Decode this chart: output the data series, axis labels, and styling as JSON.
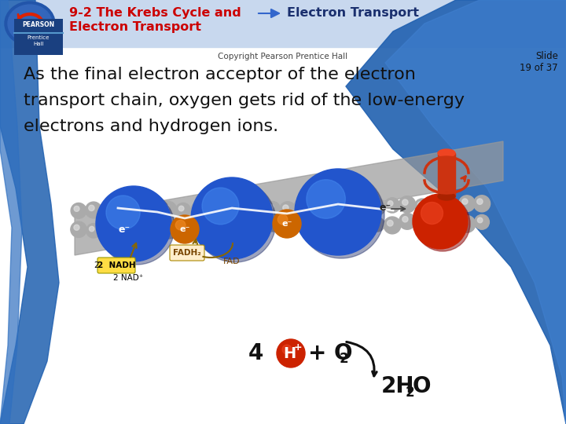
{
  "title_red": "9-2 The Krebs Cycle and",
  "title_highlight": "Electron Transport",
  "title_line2": "Electron Transport",
  "body_line1": "As the final electron acceptor of the electron",
  "body_line2": "transport chain, oxygen gets rid of the low-energy",
  "body_line3": "electrons and hydrogen ions.",
  "slide_number": "Slide\n19 of 37",
  "copyright": "Copyright Pearson Prentice Hall",
  "bg_color": "#ffffff",
  "header_bg": "#c8d8ee",
  "title_red_color": "#cc0000",
  "title_blue_color": "#1a2f6e",
  "body_color": "#111111",
  "left_curve_color": "#2060b0",
  "bottom_right_color": "#2060b0",
  "arrow_fill": "#3366cc",
  "membrane_color": "#b8b8b8",
  "blue_sphere_color": "#2255cc",
  "blue_sphere_dark": "#0a1a5a",
  "blue_sphere_light": "#4488ee",
  "red_sphere_color": "#cc2200",
  "red_sphere_light": "#ee4422",
  "orange_sphere_color": "#cc6600",
  "orange_sphere_light": "#ee8822",
  "gray_sphere_color": "#aaaaaa",
  "gray_sphere_light": "#dddddd",
  "nadh_bg": "#ffdd44",
  "nadh_text_color": "#000000",
  "fad_arrow_color": "#886600",
  "electron_path_color": "#ffffff",
  "formula_color": "#111111",
  "h_plus_bg": "#cc2200",
  "h_plus_text": "#ffffff",
  "water_arrow_color": "#111111",
  "pearson_bg": "#1a4080",
  "pearson_line_color": "#5599cc",
  "slide_color": "#111111"
}
